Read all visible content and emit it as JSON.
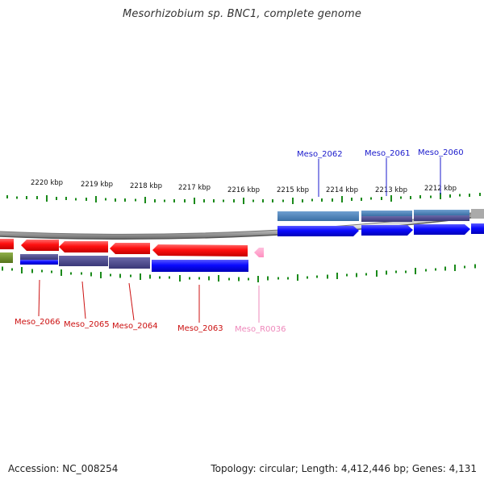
{
  "title": "Mesorhizobium sp. BNC1, complete genome",
  "footer": {
    "accession": "Accession: NC_008254",
    "topology": "Topology: circular; Length: 4,412,446 bp; Genes: 4,131"
  },
  "scale_labels": [
    "2220 kbp",
    "2219 kbp",
    "2218 kbp",
    "2217 kbp",
    "2216 kbp",
    "2215 kbp",
    "2214 kbp",
    "2213 kbp",
    "2212 kbp"
  ],
  "top_gene_labels": [
    "Meso_2062",
    "Meso_2061",
    "Meso_2060"
  ],
  "bottom_gene_labels": [
    "Meso_2066",
    "Meso_2065",
    "Meso_2064",
    "Meso_2063",
    "Meso_R0036"
  ],
  "colors": {
    "forward_cds": "#0000ee",
    "reverse_cds": "#ee0000",
    "rna": "#ff99cc",
    "cog_steelblue": "#4a7fb5",
    "cog_slate": "#4b4a8c",
    "cog_olive": "#6b8e23",
    "gc_tick": "#1a8a1a",
    "backbone": "#666666",
    "top_label": "#1a1acc",
    "bottom_label": "#cc1111",
    "rna_label": "#ee88bb"
  }
}
